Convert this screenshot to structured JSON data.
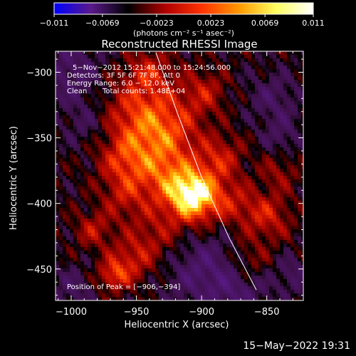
{
  "chart_data": {
    "type": "heatmap",
    "title": "Reconstructed RHESSI Image",
    "xlabel": "Heliocentric X (arcsec)",
    "ylabel": "Heliocentric Y (arcsec)",
    "xlim": [
      -1012,
      -822
    ],
    "ylim": [
      -474,
      -284
    ],
    "xticks": [
      -1000,
      -950,
      -900,
      -850
    ],
    "xtick_labels": [
      "−1000",
      "−950",
      "−900",
      "−850"
    ],
    "yticks": [
      -300,
      -350,
      -400,
      -450
    ],
    "ytick_labels": [
      "−300",
      "−350",
      "−400",
      "−450"
    ],
    "colorbar": {
      "min": -0.011,
      "max": 0.011,
      "ticks": [
        -0.011,
        -0.0069,
        -0.0023,
        0.0023,
        0.0069,
        0.011
      ],
      "tick_labels": [
        "−0.011",
        "−0.0069",
        "−0.0023",
        "0.0023",
        "0.0069",
        "0.011"
      ],
      "unit_label": "(photons cm⁻² s⁻¹ asec⁻²)",
      "colors": [
        "#0000ff",
        "#5a1a8a",
        "#000000",
        "#b00000",
        "#ff3300",
        "#ff9900",
        "#ffff60",
        "#ffffff"
      ]
    },
    "annotations": {
      "line1": "5−Nov−2012 15:21:48.000 to 15:24:56.000",
      "line2": "Detectors: 3F 5F 6F 7F 8F, Att 0",
      "line3": "Energy Range: 6.0 − 12.0 keV",
      "line4_left": "Clean",
      "line4_right": "Total counts: 1.48E+04",
      "peak": "Position of Peak = [−906,−394]"
    },
    "peak": [
      -906,
      -394
    ],
    "limb": [
      [
        -935,
        -285
      ],
      [
        -919,
        -330
      ],
      [
        -900,
        -380
      ],
      [
        -879,
        -426
      ],
      [
        -858,
        -466
      ]
    ]
  },
  "footer": {
    "timestamp": "15−May−2022 19:31"
  }
}
